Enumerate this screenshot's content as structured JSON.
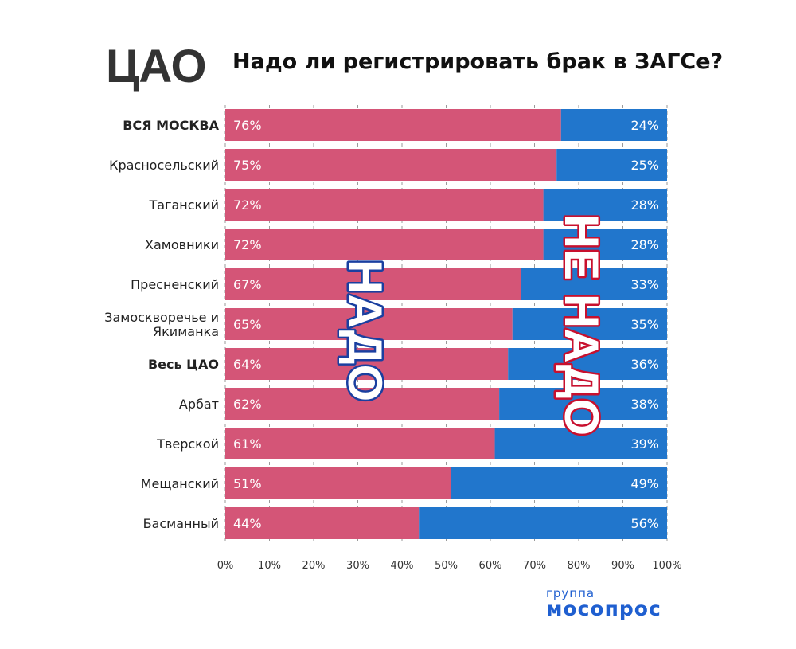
{
  "header": {
    "region": "ЦАО",
    "title": "Надо ли регистрировать брак в ЗАГСе?"
  },
  "brand": {
    "line1": "группа",
    "line2": "мосопрос",
    "color": "#1f5fd0"
  },
  "chart_data": {
    "type": "bar",
    "orientation": "horizontal",
    "stacked": true,
    "title": "Надо ли регистрировать брак в ЗАГСе?",
    "categories": [
      "ВСЯ МОСКВА",
      "Красносельский",
      "Таганский",
      "Хамовники",
      "Пресненский",
      "Замоскворечье и Якиманка",
      "Весь ЦАО",
      "Арбат",
      "Тверской",
      "Мещанский",
      "Басманный"
    ],
    "category_lines": [
      [
        "ВСЯ МОСКВА"
      ],
      [
        "Красносельский"
      ],
      [
        "Таганский"
      ],
      [
        "Хамовники"
      ],
      [
        "Пресненский"
      ],
      [
        "Замоскворечье и",
        "Якиманка"
      ],
      [
        "Весь ЦАО"
      ],
      [
        "Арбат"
      ],
      [
        "Тверской"
      ],
      [
        "Мещанский"
      ],
      [
        "Басманный"
      ]
    ],
    "bold_categories": [
      "ВСЯ МОСКВА",
      "Весь ЦАО"
    ],
    "series": [
      {
        "name": "НАДО",
        "color": "#d45577",
        "values": [
          76,
          75,
          72,
          72,
          67,
          65,
          64,
          62,
          61,
          51,
          44
        ],
        "labels": [
          "76%",
          "75%",
          "72%",
          "72%",
          "67%",
          "65%",
          "64%",
          "62%",
          "61%",
          "51%",
          "44%"
        ]
      },
      {
        "name": "НЕ НАДО",
        "color": "#2176cc",
        "values": [
          24,
          25,
          28,
          28,
          33,
          35,
          36,
          38,
          39,
          49,
          56
        ],
        "labels": [
          "24%",
          "25%",
          "28%",
          "28%",
          "33%",
          "35%",
          "36%",
          "38%",
          "39%",
          "49%",
          "56%"
        ]
      }
    ],
    "xlim": [
      0,
      100
    ],
    "xticks": [
      "0%",
      "10%",
      "20%",
      "30%",
      "40%",
      "50%",
      "60%",
      "70%",
      "80%",
      "90%",
      "100%"
    ],
    "grid": true,
    "annotations": [
      {
        "text": "НАДО",
        "fill": "#ffffff",
        "stroke": "#1a3fa0"
      },
      {
        "text": "НЕ НАДО",
        "fill": "#ffffff",
        "stroke": "#c8102e"
      }
    ]
  }
}
